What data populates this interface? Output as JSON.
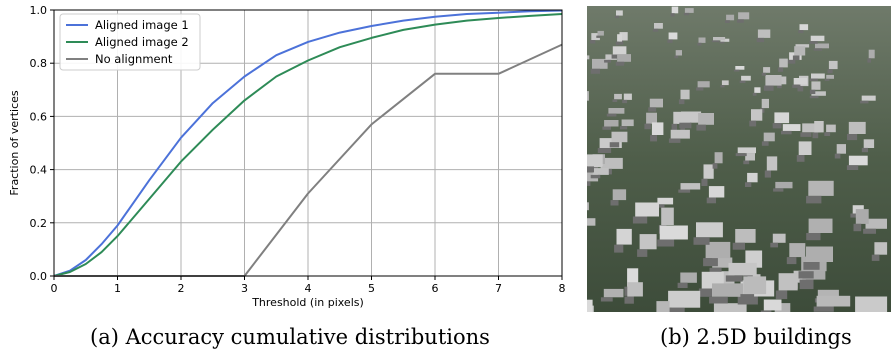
{
  "chart_data": {
    "type": "line",
    "xlabel": "Threshold (in pixels)",
    "ylabel": "Fraction of vertices",
    "xlim": [
      0,
      8
    ],
    "ylim": [
      0,
      1.0
    ],
    "xticks": [
      "0",
      "1",
      "2",
      "3",
      "4",
      "5",
      "6",
      "7",
      "8"
    ],
    "yticks": [
      "0.0",
      "0.2",
      "0.4",
      "0.6",
      "0.8",
      "1.0"
    ],
    "grid": true,
    "legend_position": "top-left",
    "series": [
      {
        "name": "Aligned image 1",
        "color": "#4c72d9",
        "x": [
          0,
          0.25,
          0.5,
          0.75,
          1,
          1.5,
          2,
          2.5,
          3,
          3.5,
          4,
          4.5,
          5,
          5.5,
          6,
          6.5,
          7,
          7.5,
          8
        ],
        "y": [
          0,
          0.02,
          0.06,
          0.12,
          0.19,
          0.36,
          0.52,
          0.65,
          0.75,
          0.83,
          0.88,
          0.915,
          0.94,
          0.96,
          0.975,
          0.985,
          0.99,
          0.995,
          0.998
        ]
      },
      {
        "name": "Aligned image 2",
        "color": "#2e8b57",
        "x": [
          0,
          0.25,
          0.5,
          0.75,
          1,
          1.5,
          2,
          2.5,
          3,
          3.5,
          4,
          4.5,
          5,
          5.5,
          6,
          6.5,
          7,
          7.5,
          8
        ],
        "y": [
          0,
          0.015,
          0.045,
          0.09,
          0.15,
          0.29,
          0.43,
          0.55,
          0.66,
          0.75,
          0.81,
          0.86,
          0.895,
          0.925,
          0.945,
          0.96,
          0.97,
          0.978,
          0.985
        ]
      },
      {
        "name": "No alignment",
        "color": "#808080",
        "x": [
          0,
          1,
          2,
          3,
          4,
          5,
          6,
          7,
          8
        ],
        "y": [
          0,
          0,
          0,
          0,
          0.31,
          0.57,
          0.76,
          0.76,
          0.87
        ]
      }
    ]
  },
  "captions": {
    "a": "(a) Accuracy cumulative distributions",
    "b": "(b) 2.5D buildings"
  },
  "photo": {
    "description_icon": "aerial-city-3d-buildings"
  }
}
